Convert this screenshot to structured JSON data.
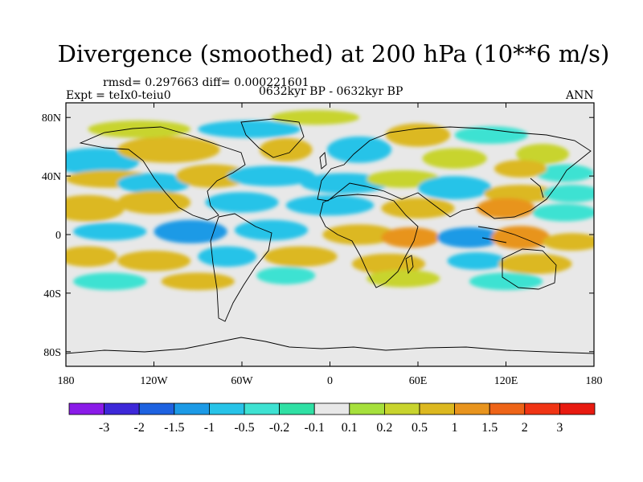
{
  "title": "Divergence (smoothed) at 200 hPa (10**6 m/s)",
  "stats_text": "rmsd= 0.297663 diff= 0.000221601",
  "experiment_text": "Expt = teIx0-teiu0",
  "period_text": "0632kyr BP - 0632kyr BP",
  "season_text": "ANN",
  "chart_data": {
    "type": "heatmap",
    "projection": "cylindrical-equidistant",
    "x_range": [
      -180,
      180
    ],
    "y_range": [
      -90,
      90
    ],
    "x_ticks": [
      {
        "value": -180,
        "label": "180"
      },
      {
        "value": -120,
        "label": "120W"
      },
      {
        "value": -60,
        "label": "60W"
      },
      {
        "value": 0,
        "label": "0"
      },
      {
        "value": 60,
        "label": "60E"
      },
      {
        "value": 120,
        "label": "120E"
      },
      {
        "value": 180,
        "label": "180"
      }
    ],
    "y_ticks": [
      {
        "value": 80,
        "label": "80N"
      },
      {
        "value": 40,
        "label": "40N"
      },
      {
        "value": 0,
        "label": "0"
      },
      {
        "value": -40,
        "label": "40S"
      },
      {
        "value": -80,
        "label": "80S"
      }
    ],
    "colorbar": {
      "labels": [
        "-3",
        "-2",
        "-1.5",
        "-1",
        "-0.5",
        "-0.2",
        "-0.1",
        "0.1",
        "0.2",
        "0.5",
        "1",
        "1.5",
        "2",
        "3"
      ],
      "colors": [
        "#8a1be8",
        "#3d28d8",
        "#1e62e0",
        "#1c9ae6",
        "#27c3e8",
        "#3ee2d2",
        "#2fe0a4",
        "#e8e8e8",
        "#a6e03c",
        "#c8d42e",
        "#dcb820",
        "#e8941e",
        "#ee6418",
        "#f03414",
        "#e81a10"
      ]
    },
    "blobs": [
      {
        "lon": -160,
        "lat": 50,
        "w": 30,
        "h": 9,
        "v": -0.6
      },
      {
        "lon": -110,
        "lat": 58,
        "w": 35,
        "h": 9,
        "v": 0.5
      },
      {
        "lon": -130,
        "lat": 72,
        "w": 35,
        "h": 6,
        "v": 0.3
      },
      {
        "lon": -55,
        "lat": 72,
        "w": 35,
        "h": 6,
        "v": -0.7
      },
      {
        "lon": -10,
        "lat": 80,
        "w": 30,
        "h": 5,
        "v": 0.3
      },
      {
        "lon": -30,
        "lat": 58,
        "w": 18,
        "h": 8,
        "v": 0.7
      },
      {
        "lon": 20,
        "lat": 58,
        "w": 22,
        "h": 9,
        "v": -0.8
      },
      {
        "lon": 60,
        "lat": 68,
        "w": 22,
        "h": 8,
        "v": 0.5
      },
      {
        "lon": 85,
        "lat": 52,
        "w": 22,
        "h": 7,
        "v": 0.3
      },
      {
        "lon": 110,
        "lat": 68,
        "w": 25,
        "h": 6,
        "v": -0.5
      },
      {
        "lon": 145,
        "lat": 55,
        "w": 18,
        "h": 7,
        "v": 0.4
      },
      {
        "lon": 160,
        "lat": 42,
        "w": 20,
        "h": 6,
        "v": -0.5
      },
      {
        "lon": 130,
        "lat": 45,
        "w": 18,
        "h": 6,
        "v": 0.8
      },
      {
        "lon": -150,
        "lat": 38,
        "w": 30,
        "h": 6,
        "v": 0.5
      },
      {
        "lon": -120,
        "lat": 35,
        "w": 25,
        "h": 7,
        "v": -0.6
      },
      {
        "lon": -80,
        "lat": 40,
        "w": 25,
        "h": 8,
        "v": 0.5
      },
      {
        "lon": -40,
        "lat": 40,
        "w": 30,
        "h": 7,
        "v": -0.6
      },
      {
        "lon": 10,
        "lat": 35,
        "w": 30,
        "h": 7,
        "v": -0.8
      },
      {
        "lon": 50,
        "lat": 38,
        "w": 25,
        "h": 6,
        "v": 0.3
      },
      {
        "lon": 85,
        "lat": 32,
        "w": 25,
        "h": 8,
        "v": -0.9
      },
      {
        "lon": 130,
        "lat": 28,
        "w": 25,
        "h": 6,
        "v": 0.5
      },
      {
        "lon": 165,
        "lat": 28,
        "w": 20,
        "h": 6,
        "v": -0.4
      },
      {
        "lon": -165,
        "lat": 18,
        "w": 25,
        "h": 9,
        "v": 0.9
      },
      {
        "lon": -120,
        "lat": 22,
        "w": 25,
        "h": 8,
        "v": 0.7
      },
      {
        "lon": -60,
        "lat": 22,
        "w": 25,
        "h": 7,
        "v": -0.7
      },
      {
        "lon": 0,
        "lat": 20,
        "w": 30,
        "h": 7,
        "v": -0.9
      },
      {
        "lon": 60,
        "lat": 18,
        "w": 25,
        "h": 7,
        "v": 0.5
      },
      {
        "lon": 120,
        "lat": 18,
        "w": 20,
        "h": 7,
        "v": 1.0
      },
      {
        "lon": 160,
        "lat": 15,
        "w": 22,
        "h": 6,
        "v": -0.5
      },
      {
        "lon": -150,
        "lat": 2,
        "w": 25,
        "h": 6,
        "v": -0.6
      },
      {
        "lon": -95,
        "lat": 2,
        "w": 25,
        "h": 8,
        "v": -1.1
      },
      {
        "lon": -40,
        "lat": 3,
        "w": 25,
        "h": 7,
        "v": -0.8
      },
      {
        "lon": 20,
        "lat": 0,
        "w": 25,
        "h": 7,
        "v": 0.7
      },
      {
        "lon": 55,
        "lat": -2,
        "w": 20,
        "h": 7,
        "v": 1.0
      },
      {
        "lon": 95,
        "lat": -2,
        "w": 22,
        "h": 7,
        "v": -1.2
      },
      {
        "lon": 130,
        "lat": -2,
        "w": 20,
        "h": 8,
        "v": 1.3
      },
      {
        "lon": 165,
        "lat": -5,
        "w": 20,
        "h": 6,
        "v": 0.5
      },
      {
        "lon": -165,
        "lat": -15,
        "w": 20,
        "h": 7,
        "v": 0.6
      },
      {
        "lon": -120,
        "lat": -18,
        "w": 25,
        "h": 7,
        "v": 0.6
      },
      {
        "lon": -70,
        "lat": -15,
        "w": 20,
        "h": 7,
        "v": -0.6
      },
      {
        "lon": -20,
        "lat": -15,
        "w": 25,
        "h": 7,
        "v": 0.6
      },
      {
        "lon": 40,
        "lat": -20,
        "w": 25,
        "h": 7,
        "v": 0.7
      },
      {
        "lon": 100,
        "lat": -18,
        "w": 20,
        "h": 6,
        "v": -0.6
      },
      {
        "lon": 140,
        "lat": -20,
        "w": 25,
        "h": 7,
        "v": 0.5
      },
      {
        "lon": -150,
        "lat": -32,
        "w": 25,
        "h": 6,
        "v": -0.5
      },
      {
        "lon": -90,
        "lat": -32,
        "w": 25,
        "h": 6,
        "v": 0.6
      },
      {
        "lon": -30,
        "lat": -28,
        "w": 20,
        "h": 6,
        "v": -0.5
      },
      {
        "lon": 50,
        "lat": -30,
        "w": 25,
        "h": 6,
        "v": 0.4
      },
      {
        "lon": 120,
        "lat": -32,
        "w": 25,
        "h": 6,
        "v": -0.4
      }
    ]
  }
}
